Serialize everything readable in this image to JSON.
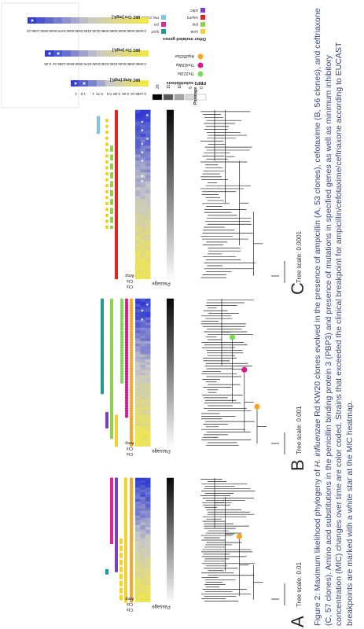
{
  "panels": {
    "a": {
      "letter": "A",
      "scale_label": "Tree scale: 0.01"
    },
    "b": {
      "letter": "B",
      "scale_label": "Tree scale: 0.001"
    },
    "c": {
      "letter": "C",
      "scale_label": "Tree scale: 0.0001"
    }
  },
  "column_labels": {
    "passage": "Passage",
    "heatmap": [
      "Ctx",
      "Ctx",
      "Amp"
    ]
  },
  "legend": {
    "passage": {
      "title": "Passage",
      "values": [
        "0",
        "5",
        "10",
        "15",
        "20"
      ],
      "colors": [
        "#ffffff",
        "#d9d9d9",
        "#a6a6a6",
        "#595959",
        "#000000"
      ]
    },
    "pbp3": {
      "title": "PBP3 substitutions",
      "items": [
        {
          "label": "Thr221Ile",
          "color": "#7ed957"
        },
        {
          "label": "Thr418Ala",
          "color": "#d6198c"
        },
        {
          "label": "Asp350Ser",
          "color": "#f5a623"
        }
      ]
    },
    "other_genes": {
      "title": "Other mutated genes",
      "items": [
        {
          "label": "rpoB",
          "color": "#f2d230"
        },
        {
          "label": "pnp",
          "color": "#8fd14f"
        },
        {
          "label": "ompP2",
          "color": "#e8221b"
        },
        {
          "label": "sdhC",
          "color": "#7a3fbf"
        },
        {
          "label": "spoT",
          "color": "#1f9e8f"
        },
        {
          "label": "prs",
          "color": "#e0249b"
        },
        {
          "label": "PM_C6000",
          "color": "#7cc3f0"
        }
      ]
    },
    "mic_amp": {
      "title": "MIC Amp [mg/L]",
      "values": [
        "0.125",
        "0.19",
        "0.25",
        "0.38",
        "0.5",
        "0.75",
        "1",
        "1.5",
        "2"
      ],
      "star_from": 7
    },
    "mic_ctx": {
      "title": "MIC Ctx [mg/L]",
      "values": [
        "0.006",
        "0.008",
        "0.012",
        "0.016",
        "0.023",
        "0.032",
        "0.047",
        "0.064",
        "0.094",
        "0.125",
        "0.19",
        "0.25"
      ],
      "star_from": 10
    },
    "mic_cro": {
      "title": "MIC Cro [mg/L]",
      "values": [
        "0.002",
        "0.003",
        "0.004",
        "0.006",
        "0.008",
        "0.012",
        "0.016",
        "0.023",
        "0.032",
        "0.047",
        "0.064",
        "0.094",
        "0.125",
        "0.19"
      ],
      "star_from": 13
    }
  },
  "caption": {
    "prefix": "Figure 2: Maximum likelihood phylogeny of ",
    "species": "H. influenzae",
    "rest": " Rd KW20 clones evolved in the presence of ampicillin (A, 53 clones), cefotaxime (B, 56 clones), and ceftriaxone (C, 57 clones). Amino acid substitutions in the penicillin binding protein 3 (PBP3) and presence of mutations in specified genes as well as minimum inhibitory concentration (MIC) changes over time are color coded. Strains that exceeded the clinical breakpoint for ampicillin/cefotaxime/ceftriaxone according to EUCAST breakpoints are marked with a white star at the MIC heatmap."
  }
}
